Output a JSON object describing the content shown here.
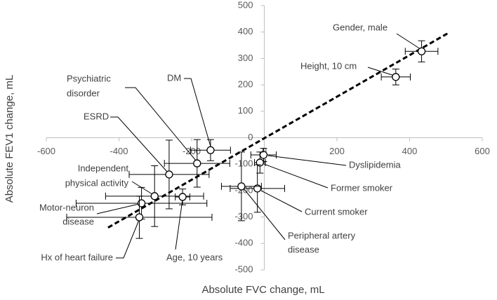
{
  "chart_data": {
    "type": "scatter",
    "xlabel": "Absolute FVC change, mL",
    "ylabel": "Absolute FEV1 change, mL",
    "xlim": [
      -600,
      600
    ],
    "ylim": [
      -500,
      500
    ],
    "xticks": [
      -600,
      -400,
      -200,
      0,
      200,
      400,
      600
    ],
    "yticks": [
      -500,
      -400,
      -300,
      -200,
      -100,
      0,
      100,
      200,
      300,
      400,
      500
    ],
    "trendline": {
      "x": [
        -430,
        505
      ],
      "y": [
        -340,
        395
      ]
    },
    "points": [
      {
        "label": [
          "Gender, male"
        ],
        "x": 433,
        "y": 327,
        "xerr": 45,
        "yerr": 40
      },
      {
        "label": [
          "Height, 10 cm"
        ],
        "x": 362,
        "y": 230,
        "xerr": 40,
        "yerr": 30
      },
      {
        "label": [
          "DM"
        ],
        "x": -148,
        "y": -47,
        "xerr": 55,
        "yerr": 40
      },
      {
        "label": [
          "Psychiatric",
          "disorder"
        ],
        "x": -185,
        "y": -97,
        "xerr": 90,
        "yerr": 90
      },
      {
        "label": [
          "ESRD"
        ],
        "x": -262,
        "y": -139,
        "xerr": 110,
        "yerr": 130
      },
      {
        "label": [
          "Independent",
          "physical activity"
        ],
        "x": -302,
        "y": -221,
        "xerr": 135,
        "yerr": 115
      },
      {
        "label": [
          "Motor-neuron",
          "disease"
        ],
        "x": -338,
        "y": -248,
        "xerr": 180,
        "yerr": 60
      },
      {
        "label": [
          "Hx of heart failure"
        ],
        "x": -344,
        "y": -301,
        "xerr": 200,
        "yerr": 80
      },
      {
        "label": [
          "Age, 10 years"
        ],
        "x": -225,
        "y": -224,
        "xerr": 20,
        "yerr": 30
      },
      {
        "label": [
          "Dyslipidemia"
        ],
        "x": -2,
        "y": -65,
        "xerr": 35,
        "yerr": 25
      },
      {
        "label": [
          "Former smoker"
        ],
        "x": -12,
        "y": -94,
        "xerr": 15,
        "yerr": 40
      },
      {
        "label": [
          "Current smoker"
        ],
        "x": -19,
        "y": -192,
        "xerr": 75,
        "yerr": 90
      },
      {
        "label": [
          "Peripheral artery",
          "disease"
        ],
        "x": -63,
        "y": -184,
        "xerr": 55,
        "yerr": 130
      }
    ]
  }
}
